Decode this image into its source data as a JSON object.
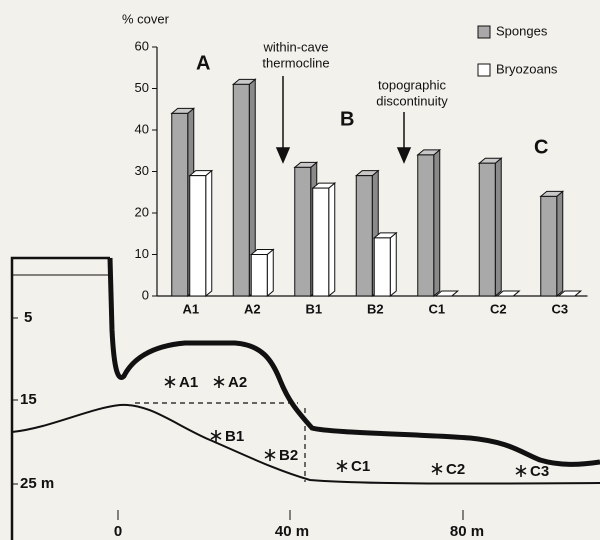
{
  "chart_data": {
    "type": "bar",
    "ylabel": "% cover",
    "categories": [
      "A1",
      "A2",
      "B1",
      "B2",
      "C1",
      "C2",
      "C3"
    ],
    "series": [
      {
        "name": "Sponges",
        "color": "#a9a9a9",
        "values": [
          44,
          51,
          31,
          29,
          34,
          32,
          24
        ]
      },
      {
        "name": "Bryozoans",
        "color": "#ffffff",
        "values": [
          29,
          10,
          26,
          14,
          0,
          0,
          0
        ]
      }
    ],
    "ylim": [
      0,
      60
    ],
    "yticks": [
      0,
      10,
      20,
      30,
      40,
      50,
      60
    ],
    "annotations": {
      "zone_a": "A",
      "zone_b": "B",
      "zone_c": "C",
      "thermocline": [
        "within-cave",
        "thermocline"
      ],
      "discontinuity": [
        "topographic",
        "discontinuity"
      ]
    }
  },
  "profile": {
    "depth_labels": [
      "5",
      "15",
      "25 m"
    ],
    "distance_labels": [
      "0",
      "40 m",
      "80 m"
    ],
    "stations": [
      "A1",
      "A2",
      "B1",
      "B2",
      "C1",
      "C2",
      "C3"
    ]
  }
}
